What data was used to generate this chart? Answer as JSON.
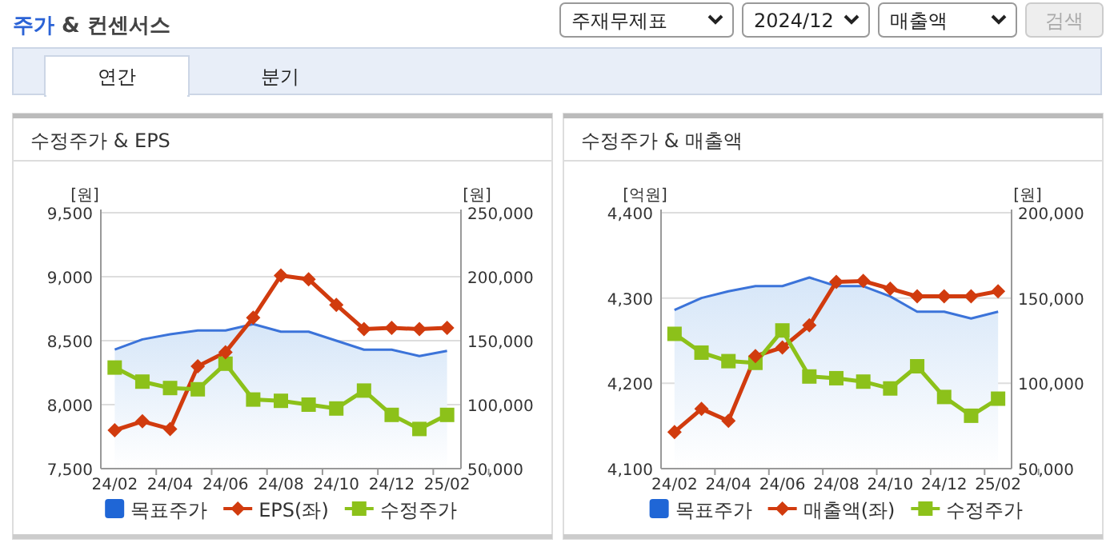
{
  "chart_data": [
    {
      "type": "line",
      "title": "수정주가 & EPS",
      "ylabel": "[원]",
      "y2label": "[원]",
      "annotations": [
        "주가 & 컨센서스",
        "주재무제표",
        "2024/12",
        "매출액",
        "검색",
        "연간",
        "분기"
      ],
      "categories": [
        "24/02",
        null,
        "24/04",
        null,
        "24/06",
        null,
        "24/08",
        null,
        "24/10",
        null,
        "24/12",
        null,
        "25/02"
      ],
      "ylim": [
        7500,
        9500
      ],
      "yticks": [
        {
          "value": 7500,
          "label": "7,500"
        },
        {
          "value": 8000,
          "label": "8,000"
        },
        {
          "value": 8500,
          "label": "8,500"
        },
        {
          "value": 9000,
          "label": "9,000"
        },
        {
          "value": 9500,
          "label": "9,500"
        }
      ],
      "y2lim": [
        50000,
        250000
      ],
      "y2ticks": [
        {
          "value": 50000,
          "label": "50,000"
        },
        {
          "value": 100000,
          "label": "100,000"
        },
        {
          "value": 150000,
          "label": "150,000"
        },
        {
          "value": 200000,
          "label": "200,000"
        },
        {
          "value": 250000,
          "label": "250,000"
        }
      ],
      "grid": "y",
      "legend": "bottom",
      "series": [
        {
          "name": "목표주가",
          "type": "area",
          "axis": "y2",
          "color": "#3b73d9",
          "marker": "none",
          "values": [
            143000,
            151000,
            155000,
            158000,
            158000,
            163000,
            157000,
            157000,
            150000,
            143000,
            143000,
            138000,
            142000
          ]
        },
        {
          "name": "EPS(좌)",
          "type": "line",
          "color": "#d13b0e",
          "marker": "diamond",
          "values": [
            7800,
            7870,
            7810,
            8300,
            8410,
            8680,
            9010,
            8980,
            8780,
            8590,
            8600,
            8590,
            8600
          ]
        },
        {
          "name": "수정주가",
          "type": "line",
          "axis": "y2",
          "color": "#8cc11a",
          "marker": "square",
          "values": [
            129000,
            118000,
            113000,
            112000,
            132000,
            104000,
            103000,
            100000,
            97000,
            111000,
            92000,
            81000,
            92000
          ]
        }
      ]
    },
    {
      "type": "line",
      "title": "수정주가 & 매출액",
      "ylabel": "[억원]",
      "y2label": "[원]",
      "categories": [
        "24/02",
        null,
        "24/04",
        null,
        "24/06",
        null,
        "24/08",
        null,
        "24/10",
        null,
        "24/12",
        null,
        "25/02"
      ],
      "ylim": [
        4100,
        4400
      ],
      "yticks": [
        {
          "value": 4100,
          "label": "4,100"
        },
        {
          "value": 4200,
          "label": "4,200"
        },
        {
          "value": 4300,
          "label": "4,300"
        },
        {
          "value": 4400,
          "label": "4,400"
        }
      ],
      "y2lim": [
        50000,
        200000
      ],
      "y2ticks": [
        {
          "value": 50000,
          "label": "50,000"
        },
        {
          "value": 100000,
          "label": "100,000"
        },
        {
          "value": 150000,
          "label": "150,000"
        },
        {
          "value": 200000,
          "label": "200,000"
        }
      ],
      "grid": "y",
      "legend": "bottom",
      "series": [
        {
          "name": "목표주가",
          "type": "area",
          "axis": "y2",
          "color": "#3b73d9",
          "marker": "none",
          "values": [
            143000,
            150000,
            154000,
            157000,
            157000,
            162000,
            157000,
            157000,
            151000,
            142000,
            142000,
            138000,
            142000
          ]
        },
        {
          "name": "매출액(좌)",
          "type": "line",
          "color": "#d13b0e",
          "marker": "diamond",
          "values": [
            4143,
            4170,
            4156,
            4232,
            4242,
            4268,
            4319,
            4320,
            4311,
            4302,
            4302,
            4302,
            4308
          ]
        },
        {
          "name": "수정주가",
          "type": "line",
          "axis": "y2",
          "color": "#8cc11a",
          "marker": "square",
          "values": [
            129000,
            118000,
            113000,
            112000,
            131000,
            104000,
            103000,
            101000,
            97000,
            110000,
            92000,
            81000,
            91000
          ]
        }
      ]
    }
  ]
}
